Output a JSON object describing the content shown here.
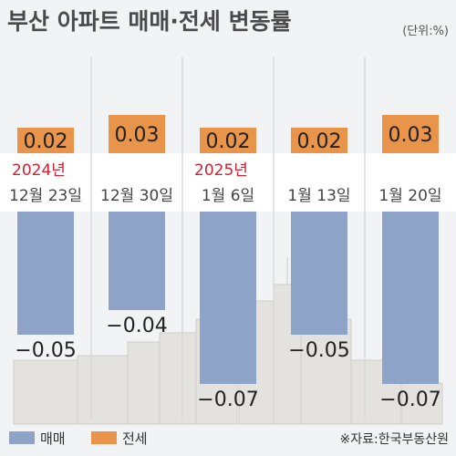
{
  "title": "부산 아파트 매매·전세 변동률",
  "unit": "(단위:%)",
  "chart_data": {
    "type": "bar",
    "categories": [
      "12월 23일",
      "12월 30일",
      "1월 6일",
      "1월 13일",
      "1월 20일"
    ],
    "year_labels": [
      "2024년",
      "",
      "2025년",
      "",
      ""
    ],
    "series": [
      {
        "name": "매매",
        "values": [
          -0.05,
          -0.04,
          -0.07,
          -0.05,
          -0.07
        ],
        "labels": [
          "−0.05",
          "−0.04",
          "−0.07",
          "−0.05",
          "−0.07"
        ],
        "color": "#8da3c8"
      },
      {
        "name": "전세",
        "values": [
          0.02,
          0.03,
          0.02,
          0.02,
          0.03
        ],
        "labels": [
          "0.02",
          "0.03",
          "0.02",
          "0.02",
          "0.03"
        ],
        "color": "#e8944a"
      }
    ],
    "ylim": [
      -0.07,
      0.03
    ],
    "legend_position": "bottom-left",
    "year_color": "#cc2233"
  },
  "source": "※자료:한국부동산원",
  "colors": {
    "background": "#f2f3f4",
    "label_band": "#ffffff",
    "divider": "#d8dadc",
    "skyline": "#e0dfdc"
  }
}
